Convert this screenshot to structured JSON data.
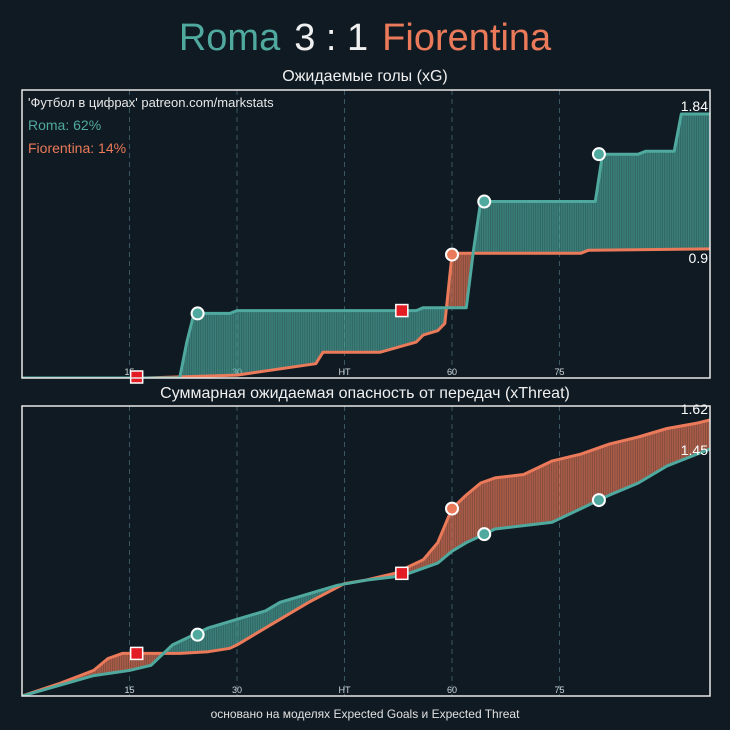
{
  "header": {
    "home_team": "Roma",
    "score": "3 : 1",
    "away_team": "Fiorentina"
  },
  "footer": "основано на моделях Expected Goals и Expected Threat",
  "colors": {
    "home": "#4fa99e",
    "away": "#ea7a5a",
    "goal_marker": "#e31b23",
    "background": "#101a22"
  },
  "chart_data": [
    {
      "type": "line",
      "title": "Ожидаемые голы (xG)",
      "annotations": [
        "'Футбол в цифрах' patreon.com/markstats",
        "Roma: 62%",
        "Fiorentina: 14%"
      ],
      "x_ticks": [
        "15",
        "30",
        "HT",
        "60",
        "75"
      ],
      "xlim": [
        0,
        96
      ],
      "ylim": [
        0,
        1.84
      ],
      "series": [
        {
          "name": "Roma",
          "final_label": "1.84",
          "x": [
            0,
            22,
            23,
            24,
            25,
            29,
            30,
            55,
            56,
            58,
            62,
            63,
            64,
            80,
            81,
            86,
            87,
            89,
            91,
            92,
            96
          ],
          "y": [
            0,
            0,
            0.25,
            0.45,
            0.45,
            0.45,
            0.47,
            0.47,
            0.49,
            0.49,
            0.49,
            0.89,
            1.23,
            1.23,
            1.56,
            1.56,
            1.58,
            1.58,
            1.58,
            1.84,
            1.84
          ]
        },
        {
          "name": "Fiorentina",
          "final_label": "0.9",
          "x": [
            0,
            16,
            17,
            30,
            41,
            42,
            49,
            50,
            55,
            56,
            58,
            59,
            60,
            61,
            78,
            79,
            96
          ],
          "y": [
            0,
            0,
            0,
            0.02,
            0.1,
            0.18,
            0.18,
            0.18,
            0.25,
            0.3,
            0.33,
            0.38,
            0.86,
            0.87,
            0.87,
            0.89,
            0.9
          ]
        }
      ],
      "events": [
        {
          "team": "Roma",
          "kind": "goal",
          "x": 24.5,
          "y": 0.45
        },
        {
          "team": "Roma",
          "kind": "goal",
          "x": 64.5,
          "y": 1.23
        },
        {
          "team": "Roma",
          "kind": "goal",
          "x": 80.5,
          "y": 1.56
        },
        {
          "team": "Fiorentina",
          "kind": "goal",
          "x": 60,
          "y": 0.86
        },
        {
          "team": "Fiorentina",
          "kind": "own_goal",
          "x": 16,
          "y": 0
        },
        {
          "team": "Roma",
          "kind": "own_goal",
          "x": 53,
          "y": 0.47
        }
      ]
    },
    {
      "type": "line",
      "title": "Суммарная ожидаемая опасность от передач (xThreat)",
      "x_ticks": [
        "15",
        "30",
        "HT",
        "60",
        "75"
      ],
      "xlim": [
        0,
        96
      ],
      "ylim": [
        0,
        1.62
      ],
      "series": [
        {
          "name": "Roma",
          "final_label": "1.45",
          "x": [
            0,
            5,
            10,
            15,
            18,
            21,
            24,
            26,
            30,
            34,
            36,
            40,
            44,
            48,
            52,
            54,
            58,
            60,
            62,
            64,
            66,
            70,
            74,
            78,
            80,
            82,
            86,
            90,
            93,
            96
          ],
          "y": [
            0,
            0.06,
            0.12,
            0.15,
            0.18,
            0.3,
            0.36,
            0.4,
            0.45,
            0.5,
            0.55,
            0.6,
            0.65,
            0.68,
            0.7,
            0.72,
            0.78,
            0.85,
            0.9,
            0.94,
            0.98,
            1.0,
            1.02,
            1.1,
            1.14,
            1.18,
            1.25,
            1.35,
            1.4,
            1.45
          ]
        },
        {
          "name": "Fiorentina",
          "final_label": "1.62",
          "x": [
            0,
            5,
            10,
            12,
            14,
            16,
            18,
            22,
            26,
            29,
            30,
            32,
            36,
            40,
            45,
            48,
            52,
            54,
            56,
            58,
            60,
            62,
            64,
            66,
            70,
            74,
            78,
            82,
            86,
            90,
            94,
            96
          ],
          "y": [
            0,
            0.07,
            0.15,
            0.22,
            0.25,
            0.25,
            0.25,
            0.25,
            0.26,
            0.28,
            0.3,
            0.35,
            0.45,
            0.55,
            0.66,
            0.68,
            0.72,
            0.76,
            0.8,
            0.9,
            1.1,
            1.18,
            1.25,
            1.28,
            1.3,
            1.38,
            1.42,
            1.48,
            1.52,
            1.57,
            1.6,
            1.62
          ]
        }
      ],
      "events": [
        {
          "team": "Fiorentina",
          "kind": "own_goal",
          "x": 16,
          "y": 0.25
        },
        {
          "team": "Roma",
          "kind": "goal",
          "x": 24.5,
          "y": 0.36
        },
        {
          "team": "Roma",
          "kind": "own_goal",
          "x": 53,
          "y": 0.72
        },
        {
          "team": "Fiorentina",
          "kind": "goal",
          "x": 60,
          "y": 1.1
        },
        {
          "team": "Roma",
          "kind": "goal",
          "x": 64.5,
          "y": 0.95
        },
        {
          "team": "Roma",
          "kind": "goal",
          "x": 80.5,
          "y": 1.15
        }
      ]
    }
  ]
}
